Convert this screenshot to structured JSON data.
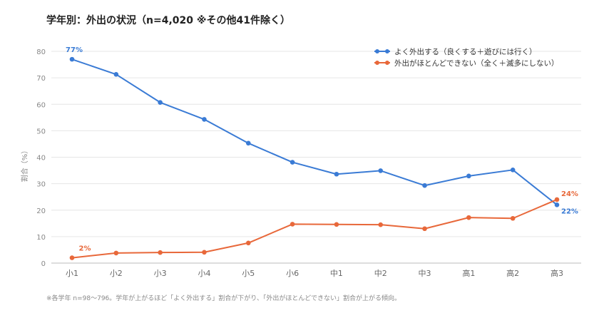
{
  "title": "学年別：外出の状況（n=4,020 ※その他41件除く）",
  "footnote": "※各学年 n=98〜796。学年が上がるほど「よく外出する」割合が下がり、「外出がほとんどできない」割合が上がる傾向。",
  "chart_data": {
    "type": "line",
    "title": "学年別：外出の状況（n=4,020 ※その他41件除く）",
    "xlabel": "",
    "ylabel": "割合（%）",
    "ylim": [
      0,
      80
    ],
    "yticks": [
      0,
      10,
      20,
      30,
      40,
      50,
      60,
      70,
      80
    ],
    "grid": true,
    "legend_position": "top-right",
    "categories": [
      "小1",
      "小2",
      "小3",
      "小4",
      "小5",
      "小6",
      "中1",
      "中2",
      "中3",
      "高1",
      "高2",
      "高3"
    ],
    "series": [
      {
        "name": "よく外出する（良くする＋遊びには行く）",
        "color": "#3a7bd5",
        "values": [
          77,
          71.3,
          60.7,
          54.3,
          45.3,
          38.1,
          33.6,
          34.9,
          29.3,
          32.9,
          35.2,
          22
        ],
        "point_labels": {
          "0": "77%",
          "11": "22%"
        }
      },
      {
        "name": "外出がほとんどできない（全く＋滅多にしない）",
        "color": "#e8683a",
        "values": [
          2,
          3.8,
          4,
          4.1,
          7.6,
          14.7,
          14.6,
          14.5,
          13,
          17.2,
          16.9,
          24
        ],
        "point_labels": {
          "0": "2%",
          "11": "24%"
        }
      }
    ]
  }
}
